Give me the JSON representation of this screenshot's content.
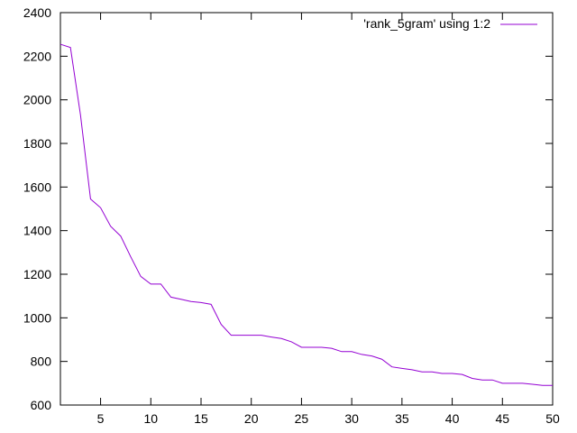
{
  "chart_data": {
    "type": "line",
    "title": "",
    "xlabel": "",
    "ylabel": "",
    "xlim": [
      1,
      50
    ],
    "ylim": [
      600,
      2400
    ],
    "grid": false,
    "legend_position": "top-right",
    "x_ticks": [
      5,
      10,
      15,
      20,
      25,
      30,
      35,
      40,
      45,
      50
    ],
    "y_ticks": [
      600,
      800,
      1000,
      1200,
      1400,
      1600,
      1800,
      2000,
      2200,
      2400
    ],
    "series": [
      {
        "name": "'rank_5gram' using 1:2",
        "color": "#9400d3",
        "x": [
          1,
          2,
          3,
          4,
          5,
          6,
          7,
          8,
          9,
          10,
          11,
          12,
          13,
          14,
          15,
          16,
          17,
          18,
          19,
          20,
          21,
          22,
          23,
          24,
          25,
          26,
          27,
          28,
          29,
          30,
          31,
          32,
          33,
          34,
          35,
          36,
          37,
          38,
          39,
          40,
          41,
          42,
          43,
          44,
          45,
          46,
          47,
          48,
          49,
          50
        ],
        "y": [
          2255,
          2240,
          1930,
          1545,
          1505,
          1420,
          1375,
          1280,
          1190,
          1155,
          1155,
          1095,
          1085,
          1075,
          1070,
          1062,
          970,
          920,
          920,
          920,
          920,
          912,
          905,
          890,
          865,
          865,
          865,
          860,
          845,
          845,
          832,
          825,
          810,
          775,
          768,
          762,
          752,
          752,
          745,
          745,
          740,
          722,
          715,
          715,
          700,
          700,
          700,
          695,
          690,
          690
        ]
      }
    ]
  }
}
